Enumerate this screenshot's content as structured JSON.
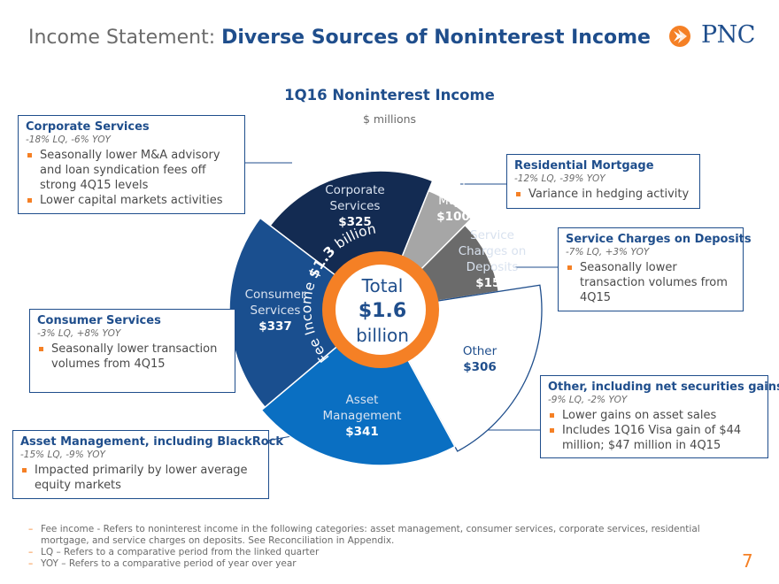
{
  "header": {
    "title_plain": "Income Statement: ",
    "title_bold": "Diverse Sources of Noninterest Income"
  },
  "logo": {
    "text": "PNC"
  },
  "chart_data": {
    "type": "pie",
    "title": "1Q16 Noninterest Income",
    "subtitle": "$ millions",
    "center": {
      "line1": "Total",
      "line2": "$1.6",
      "line3": "billion"
    },
    "ring_label": "Fee Income $1.3 billion",
    "ring_label_parts": [
      "Fee Income ",
      "$1.3",
      " billion"
    ],
    "unit": "$ millions",
    "slices": [
      {
        "name": "Corporate Services",
        "label_lines": [
          "Corporate",
          "Services"
        ],
        "value": 325,
        "display": "$325",
        "color": "#132b52",
        "fee": true
      },
      {
        "name": "Resi Mtge",
        "label_lines": [
          "Resi",
          "Mtge"
        ],
        "value": 100,
        "display": "$100",
        "color": "#a6a6a6",
        "fee": true
      },
      {
        "name": "Service Charges on Deposits",
        "label_lines": [
          "Service",
          "Charges on",
          "Deposits"
        ],
        "value": 158,
        "display": "$158",
        "color": "#6b6b6b",
        "fee": true
      },
      {
        "name": "Other",
        "label_lines": [
          "Other"
        ],
        "value": 306,
        "display": "$306",
        "color": "#ffffff",
        "fee": false
      },
      {
        "name": "Asset Management",
        "label_lines": [
          "Asset",
          "Management"
        ],
        "value": 341,
        "display": "$341",
        "color": "#0a6fc2",
        "fee": true
      },
      {
        "name": "Consumer Services",
        "label_lines": [
          "Consumer",
          "Services"
        ],
        "value": 337,
        "display": "$337",
        "color": "#1a4f8f",
        "fee": true
      }
    ]
  },
  "callouts": {
    "corporate": {
      "title": "Corporate Services",
      "sub": "-18% LQ, -6% YOY",
      "bullets": [
        "Seasonally lower M&A advisory and loan syndication fees off strong 4Q15 levels",
        "Lower capital markets activities"
      ]
    },
    "residential": {
      "title": "Residential Mortgage",
      "sub": "-12% LQ, -39% YOY",
      "bullets": [
        "Variance in hedging activity"
      ]
    },
    "service": {
      "title": "Service Charges on Deposits",
      "sub": "-7% LQ, +3% YOY",
      "bullets": [
        "Seasonally lower transaction volumes from 4Q15"
      ]
    },
    "consumer": {
      "title": "Consumer Services",
      "sub": "-3% LQ, +8% YOY",
      "bullets": [
        "Seasonally lower transaction volumes from 4Q15"
      ]
    },
    "other": {
      "title": "Other, including net securities gains",
      "sub": "-9% LQ, -2% YOY",
      "bullets": [
        "Lower gains on asset sales",
        "Includes 1Q16 Visa gain of $44 million; $47 million in 4Q15"
      ]
    },
    "asset": {
      "title": "Asset Management, including BlackRock",
      "sub": "-15% LQ, -9% YOY",
      "bullets": [
        "Impacted primarily by lower average equity markets"
      ]
    }
  },
  "footnotes": [
    "Fee income - Refers to noninterest income in the following categories: asset management, consumer services, corporate services, residential mortgage, and service charges on deposits. See Reconciliation in Appendix.",
    "LQ – Refers to a comparative period from the linked quarter",
    "YOY – Refers to a comparative period of year over year"
  ],
  "page_number": "7"
}
